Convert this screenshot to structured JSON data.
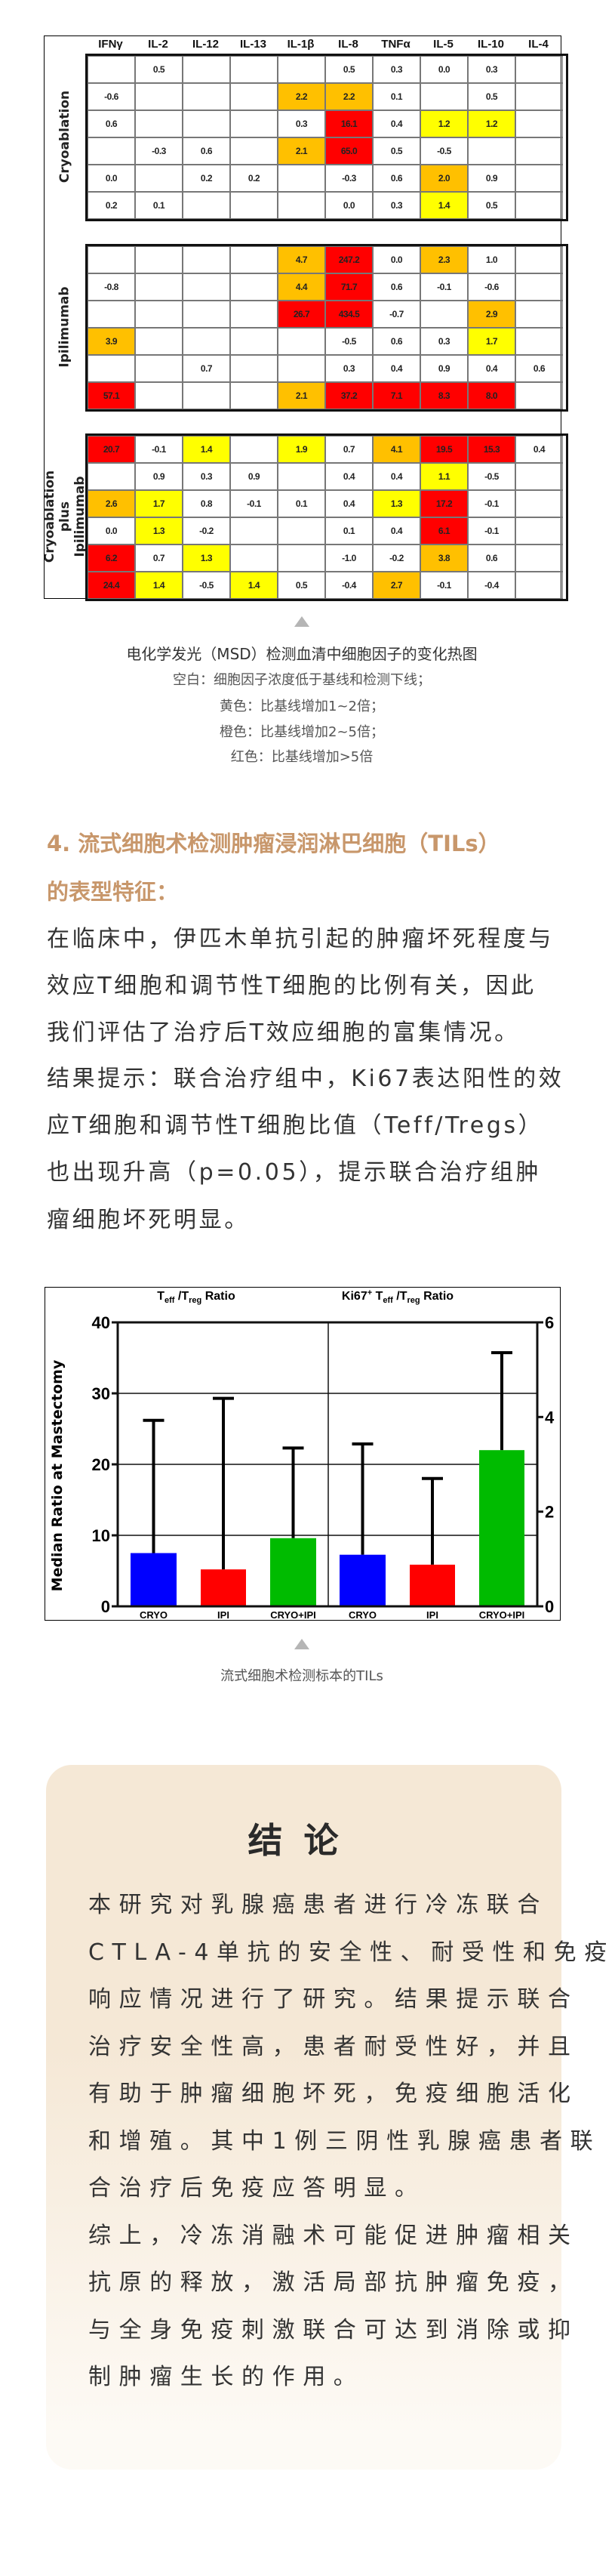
{
  "heatmap": {
    "columns": [
      "IFNγ",
      "IL-2",
      "IL-12",
      "IL-13",
      "IL-1β",
      "IL-8",
      "TNFα",
      "IL-5",
      "IL-10",
      "IL-4"
    ],
    "level_colors": {
      "y": "#ffff00",
      "o": "#ffc000",
      "r": "#ff0000"
    },
    "groups": [
      {
        "label": "Cryoablation",
        "rows": [
          {
            "values": [
              "",
              "0.5",
              "",
              "",
              "",
              "0.5",
              "0.3",
              "0.0",
              "0.3",
              ""
            ],
            "levels": [
              "",
              "",
              "",
              "",
              "",
              "",
              "",
              "",
              "",
              ""
            ]
          },
          {
            "values": [
              "-0.6",
              "",
              "",
              "",
              "2.2",
              "2.2",
              "0.1",
              "",
              "0.5",
              ""
            ],
            "levels": [
              "",
              "",
              "",
              "",
              "o",
              "o",
              "",
              "",
              "",
              ""
            ]
          },
          {
            "values": [
              "0.6",
              "",
              "",
              "",
              "0.3",
              "16.1",
              "0.4",
              "1.2",
              "1.2",
              ""
            ],
            "levels": [
              "",
              "",
              "",
              "",
              "",
              "r",
              "",
              "y",
              "y",
              ""
            ]
          },
          {
            "values": [
              "",
              "-0.3",
              "0.6",
              "",
              "2.1",
              "65.0",
              "0.5",
              "-0.5",
              "",
              ""
            ],
            "levels": [
              "",
              "",
              "",
              "",
              "o",
              "r",
              "",
              "",
              "",
              ""
            ]
          },
          {
            "values": [
              "0.0",
              "",
              "0.2",
              "0.2",
              "",
              "-0.3",
              "0.6",
              "2.0",
              "0.9",
              ""
            ],
            "levels": [
              "",
              "",
              "",
              "",
              "",
              "",
              "",
              "o",
              "",
              ""
            ]
          },
          {
            "values": [
              "0.2",
              "0.1",
              "",
              "",
              "",
              "0.0",
              "0.3",
              "1.4",
              "0.5",
              ""
            ],
            "levels": [
              "",
              "",
              "",
              "",
              "",
              "",
              "",
              "y",
              "",
              ""
            ]
          }
        ]
      },
      {
        "label": "Ipilimumab",
        "rows": [
          {
            "values": [
              "",
              "",
              "",
              "",
              "4.7",
              "247.2",
              "0.0",
              "2.3",
              "1.0",
              ""
            ],
            "levels": [
              "",
              "",
              "",
              "",
              "o",
              "r",
              "",
              "o",
              "",
              ""
            ]
          },
          {
            "values": [
              "-0.8",
              "",
              "",
              "",
              "4.4",
              "71.7",
              "0.6",
              "-0.1",
              "-0.6",
              ""
            ],
            "levels": [
              "",
              "",
              "",
              "",
              "o",
              "r",
              "",
              "",
              "",
              ""
            ]
          },
          {
            "values": [
              "",
              "",
              "",
              "",
              "26.7",
              "434.5",
              "-0.7",
              "",
              "2.9",
              ""
            ],
            "levels": [
              "",
              "",
              "",
              "",
              "r",
              "r",
              "",
              "",
              "o",
              ""
            ]
          },
          {
            "values": [
              "3.9",
              "",
              "",
              "",
              "",
              "-0.5",
              "0.6",
              "0.3",
              "1.7",
              ""
            ],
            "levels": [
              "o",
              "",
              "",
              "",
              "",
              "",
              "",
              "",
              "y",
              ""
            ]
          },
          {
            "values": [
              "",
              "",
              "0.7",
              "",
              "",
              "0.3",
              "0.4",
              "0.9",
              "0.4",
              "0.6"
            ],
            "levels": [
              "",
              "",
              "",
              "",
              "",
              "",
              "",
              "",
              "",
              ""
            ]
          },
          {
            "values": [
              "57.1",
              "",
              "",
              "",
              "2.1",
              "37.2",
              "7.1",
              "8.3",
              "8.0",
              ""
            ],
            "levels": [
              "r",
              "",
              "",
              "",
              "o",
              "r",
              "r",
              "r",
              "r",
              ""
            ]
          }
        ]
      },
      {
        "label": "Cryoablation plus Ipilimumab",
        "rows": [
          {
            "values": [
              "20.7",
              "-0.1",
              "1.4",
              "",
              "1.9",
              "0.7",
              "4.1",
              "19.5",
              "15.3",
              "0.4"
            ],
            "levels": [
              "r",
              "",
              "y",
              "",
              "y",
              "",
              "o",
              "r",
              "r",
              ""
            ]
          },
          {
            "values": [
              "",
              "0.9",
              "0.3",
              "0.9",
              "",
              "0.4",
              "0.4",
              "1.1",
              "-0.5",
              ""
            ],
            "levels": [
              "",
              "",
              "",
              "",
              "",
              "",
              "",
              "y",
              "",
              ""
            ]
          },
          {
            "values": [
              "2.6",
              "1.7",
              "0.8",
              "-0.1",
              "0.1",
              "0.4",
              "1.3",
              "17.2",
              "-0.1",
              ""
            ],
            "levels": [
              "o",
              "y",
              "",
              "",
              "",
              "",
              "y",
              "r",
              "",
              ""
            ]
          },
          {
            "values": [
              "0.0",
              "1.3",
              "-0.2",
              "",
              "",
              "0.1",
              "0.4",
              "6.1",
              "-0.1",
              ""
            ],
            "levels": [
              "",
              "y",
              "",
              "",
              "",
              "",
              "",
              "r",
              "",
              ""
            ]
          },
          {
            "values": [
              "6.2",
              "0.7",
              "1.3",
              "",
              "",
              "-1.0",
              "-0.2",
              "3.8",
              "0.6",
              ""
            ],
            "levels": [
              "r",
              "",
              "y",
              "",
              "",
              "",
              "",
              "o",
              "",
              ""
            ]
          },
          {
            "values": [
              "24.4",
              "1.4",
              "-0.5",
              "1.4",
              "0.5",
              "-0.4",
              "2.7",
              "-0.1",
              "-0.4",
              ""
            ],
            "levels": [
              "r",
              "y",
              "",
              "y",
              "",
              "",
              "o",
              "",
              "",
              ""
            ]
          }
        ]
      }
    ]
  },
  "caption1": {
    "title": "电化学发光（MSD）检测血清中细胞因子的变化热图",
    "lines": [
      "空白：细胞因子浓度低于基线和检测下线；",
      "黄色：比基线增加1~2倍；",
      "橙色：比基线增加2~5倍；",
      "红色：比基线增加>5倍"
    ]
  },
  "section4": {
    "heading_lines": [
      "4. 流式细胞术检测肿瘤浸润淋巴细胞（TILs）",
      "的表型特征："
    ],
    "heading_color": "#c8976b",
    "body_lines": [
      "在临床中，伊匹木单抗引起的肿瘤坏死程度与",
      "效应T细胞和调节性T细胞的比例有关，因此",
      "我们评估了治疗后T效应细胞的富集情况。",
      "结果提示：联合治疗组中，Ki67表达阳性的效",
      "应T细胞和调节性T细胞比值（Teff/Tregs）",
      "也出现升高（p=0.05），提示联合治疗组肿",
      "瘤细胞坏死明显。"
    ]
  },
  "chart_data": {
    "type": "bar",
    "ylabel": "Median Ratio at Mastectomy",
    "grid": true,
    "panels": [
      {
        "title": "Teff /Treg Ratio",
        "title_parts": [
          "T",
          "eff",
          " /T",
          "reg",
          " Ratio"
        ],
        "axis": "left",
        "ylim": [
          0,
          40
        ],
        "yticks": [
          0,
          10,
          20,
          30,
          40
        ],
        "categories": [
          "CRYO",
          "IPI",
          "CRYO+IPI"
        ],
        "values": [
          7.5,
          5.2,
          9.6
        ],
        "error_upper": [
          26.2,
          29.3,
          22.3
        ],
        "colors": [
          "#0000ff",
          "#ff0000",
          "#00bb00"
        ]
      },
      {
        "title": "Ki67+ Teff /Treg Ratio",
        "title_parts": [
          "Ki67",
          "+",
          " T",
          "eff",
          " /T",
          "reg",
          " Ratio"
        ],
        "axis": "right",
        "ylim": [
          0,
          6
        ],
        "yticks": [
          0,
          2,
          4,
          6
        ],
        "categories": [
          "CRYO",
          "IPI",
          "CRYO+IPI"
        ],
        "values": [
          1.09,
          0.88,
          3.3
        ],
        "error_upper": [
          3.43,
          2.7,
          5.36
        ],
        "colors": [
          "#0000ff",
          "#ff0000",
          "#00bb00"
        ]
      }
    ]
  },
  "caption2": {
    "title": "流式细胞术检测标本的TILs"
  },
  "conclusion": {
    "title": "结论",
    "lines": [
      "本研究对乳腺癌患者进行冷冻联合",
      "CTLA-4单抗的安全性、耐受性和免疫",
      "响应情况进行了研究。结果提示联合",
      "治疗安全性高，患者耐受性好，并且",
      "有助于肿瘤细胞坏死，免疫细胞活化",
      "和增殖。其中1例三阴性乳腺癌患者联",
      "合治疗后免疫应答明显。",
      "综上，冷冻消融术可能促进肿瘤相关",
      "抗原的释放，激活局部抗肿瘤免疫，",
      "与全身免疫刺激联合可达到消除或抑",
      "制肿瘤生长的作用。"
    ]
  }
}
